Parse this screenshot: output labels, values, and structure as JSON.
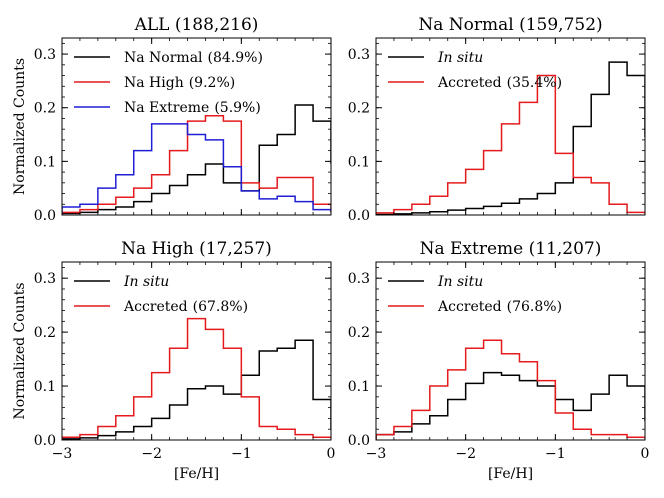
{
  "chart_data": [
    {
      "type": "step-histogram",
      "title": "ALL (188,216)",
      "xlabel": "",
      "ylabel": "Normalized Counts",
      "xlim": [
        -3,
        0
      ],
      "ylim": [
        0,
        0.33
      ],
      "xticks": [
        -3,
        -2,
        -1,
        0
      ],
      "xtick_labels": [
        "",
        "",
        "",
        ""
      ],
      "yticks": [
        0.0,
        0.1,
        0.2,
        0.3
      ],
      "ytick_labels": [
        "0.0",
        "0.1",
        "0.2",
        "0.3"
      ],
      "legend_position": "top-left",
      "series": [
        {
          "name": "Na Normal",
          "label_italic": false,
          "pct": "(84.9%)",
          "color": "#000000",
          "edges": [
            -3,
            -2.8,
            -2.6,
            -2.4,
            -2.2,
            -2,
            -1.8,
            -1.6,
            -1.4,
            -1.2,
            -1,
            -0.8,
            -0.6,
            -0.4,
            -0.2,
            0
          ],
          "values": [
            0.003,
            0.005,
            0.01,
            0.015,
            0.025,
            0.04,
            0.055,
            0.075,
            0.095,
            0.06,
            0.045,
            0.13,
            0.15,
            0.205,
            0.175,
            0.095
          ]
        },
        {
          "name": "Na High",
          "label_italic": false,
          "pct": "(9.2%)",
          "color": "#e41a1c",
          "edges": [
            -3,
            -2.8,
            -2.6,
            -2.4,
            -2.2,
            -2,
            -1.8,
            -1.6,
            -1.4,
            -1.2,
            -1,
            -0.8,
            -0.6,
            -0.4,
            -0.2,
            0
          ],
          "values": [
            0.005,
            0.01,
            0.02,
            0.033,
            0.05,
            0.075,
            0.12,
            0.175,
            0.185,
            0.175,
            0.06,
            0.05,
            0.07,
            0.07,
            0.02,
            0.005
          ]
        },
        {
          "name": "Na Extreme",
          "label_italic": false,
          "pct": "(5.9%)",
          "color": "#1f1fd6",
          "edges": [
            -3,
            -2.8,
            -2.6,
            -2.4,
            -2.2,
            -2,
            -1.8,
            -1.6,
            -1.4,
            -1.2,
            -1,
            -0.8,
            -0.6,
            -0.4,
            -0.2,
            0
          ],
          "values": [
            0.015,
            0.02,
            0.05,
            0.075,
            0.12,
            0.17,
            0.17,
            0.15,
            0.14,
            0.09,
            0.045,
            0.03,
            0.035,
            0.025,
            0.01,
            0.005
          ]
        }
      ]
    },
    {
      "type": "step-histogram",
      "title": "Na Normal (159,752)",
      "xlabel": "",
      "ylabel": "",
      "xlim": [
        -3,
        0
      ],
      "ylim": [
        0,
        0.33
      ],
      "xticks": [
        -3,
        -2,
        -1,
        0
      ],
      "xtick_labels": [
        "",
        "",
        "",
        ""
      ],
      "yticks": [
        0.0,
        0.1,
        0.2,
        0.3
      ],
      "ytick_labels": [
        "0.0",
        "0.1",
        "0.2",
        "0.3"
      ],
      "legend_position": "top-left",
      "series": [
        {
          "name": "In situ",
          "label_italic": true,
          "pct": "",
          "color": "#000000",
          "edges": [
            -3,
            -2.8,
            -2.6,
            -2.4,
            -2.2,
            -2,
            -1.8,
            -1.6,
            -1.4,
            -1.2,
            -1,
            -0.8,
            -0.6,
            -0.4,
            -0.2,
            0
          ],
          "values": [
            0.001,
            0.002,
            0.004,
            0.006,
            0.009,
            0.012,
            0.016,
            0.022,
            0.03,
            0.04,
            0.06,
            0.165,
            0.225,
            0.285,
            0.26,
            0.145
          ]
        },
        {
          "name": "Accreted",
          "label_italic": false,
          "pct": "(35.4%)",
          "color": "#e41a1c",
          "edges": [
            -3,
            -2.8,
            -2.6,
            -2.4,
            -2.2,
            -2,
            -1.8,
            -1.6,
            -1.4,
            -1.2,
            -1,
            -0.8,
            -0.6,
            -0.4,
            -0.2,
            0
          ],
          "values": [
            0.004,
            0.01,
            0.02,
            0.035,
            0.06,
            0.085,
            0.12,
            0.17,
            0.21,
            0.26,
            0.115,
            0.07,
            0.06,
            0.02,
            0.005,
            0.002
          ]
        }
      ]
    },
    {
      "type": "step-histogram",
      "title": "Na High (17,257)",
      "xlabel": "[Fe/H]",
      "ylabel": "Normalized Counts",
      "xlim": [
        -3,
        0
      ],
      "ylim": [
        0,
        0.33
      ],
      "xticks": [
        -3,
        -2,
        -1,
        0
      ],
      "xtick_labels": [
        "−3",
        "−2",
        "−1",
        "0"
      ],
      "yticks": [
        0.0,
        0.1,
        0.2,
        0.3
      ],
      "ytick_labels": [
        "0.0",
        "0.1",
        "0.2",
        "0.3"
      ],
      "legend_position": "top-left",
      "series": [
        {
          "name": "In situ",
          "label_italic": true,
          "pct": "",
          "color": "#000000",
          "edges": [
            -3,
            -2.8,
            -2.6,
            -2.4,
            -2.2,
            -2,
            -1.8,
            -1.6,
            -1.4,
            -1.2,
            -1,
            -0.8,
            -0.6,
            -0.4,
            -0.2,
            0
          ],
          "values": [
            0.002,
            0.004,
            0.008,
            0.015,
            0.025,
            0.04,
            0.065,
            0.095,
            0.1,
            0.085,
            0.12,
            0.165,
            0.17,
            0.185,
            0.075,
            0.02
          ]
        },
        {
          "name": "Accreted",
          "label_italic": false,
          "pct": "(67.8%)",
          "color": "#e41a1c",
          "edges": [
            -3,
            -2.8,
            -2.6,
            -2.4,
            -2.2,
            -2,
            -1.8,
            -1.6,
            -1.4,
            -1.2,
            -1,
            -0.8,
            -0.6,
            -0.4,
            -0.2,
            0
          ],
          "values": [
            0.005,
            0.01,
            0.025,
            0.045,
            0.08,
            0.125,
            0.17,
            0.225,
            0.205,
            0.17,
            0.08,
            0.025,
            0.02,
            0.01,
            0.005,
            0.002
          ]
        }
      ]
    },
    {
      "type": "step-histogram",
      "title": "Na Extreme (11,207)",
      "xlabel": "[Fe/H]",
      "ylabel": "",
      "xlim": [
        -3,
        0
      ],
      "ylim": [
        0,
        0.33
      ],
      "xticks": [
        -3,
        -2,
        -1,
        0
      ],
      "xtick_labels": [
        "−3",
        "−2",
        "−1",
        "0"
      ],
      "yticks": [
        0.0,
        0.1,
        0.2,
        0.3
      ],
      "ytick_labels": [
        "0.0",
        "0.1",
        "0.2",
        "0.3"
      ],
      "legend_position": "top-left",
      "series": [
        {
          "name": "In situ",
          "label_italic": true,
          "pct": "",
          "color": "#000000",
          "edges": [
            -3,
            -2.8,
            -2.6,
            -2.4,
            -2.2,
            -2,
            -1.8,
            -1.6,
            -1.4,
            -1.2,
            -1,
            -0.8,
            -0.6,
            -0.4,
            -0.2,
            0
          ],
          "values": [
            0.01,
            0.015,
            0.03,
            0.045,
            0.075,
            0.105,
            0.125,
            0.12,
            0.11,
            0.1,
            0.075,
            0.055,
            0.085,
            0.12,
            0.1,
            0.035
          ]
        },
        {
          "name": "Accreted",
          "label_italic": false,
          "pct": "(76.8%)",
          "color": "#e41a1c",
          "edges": [
            -3,
            -2.8,
            -2.6,
            -2.4,
            -2.2,
            -2,
            -1.8,
            -1.6,
            -1.4,
            -1.2,
            -1,
            -0.8,
            -0.6,
            -0.4,
            -0.2,
            0
          ],
          "values": [
            0.01,
            0.025,
            0.055,
            0.1,
            0.13,
            0.17,
            0.185,
            0.16,
            0.145,
            0.11,
            0.05,
            0.02,
            0.01,
            0.01,
            0.005,
            0.002
          ]
        }
      ]
    }
  ]
}
